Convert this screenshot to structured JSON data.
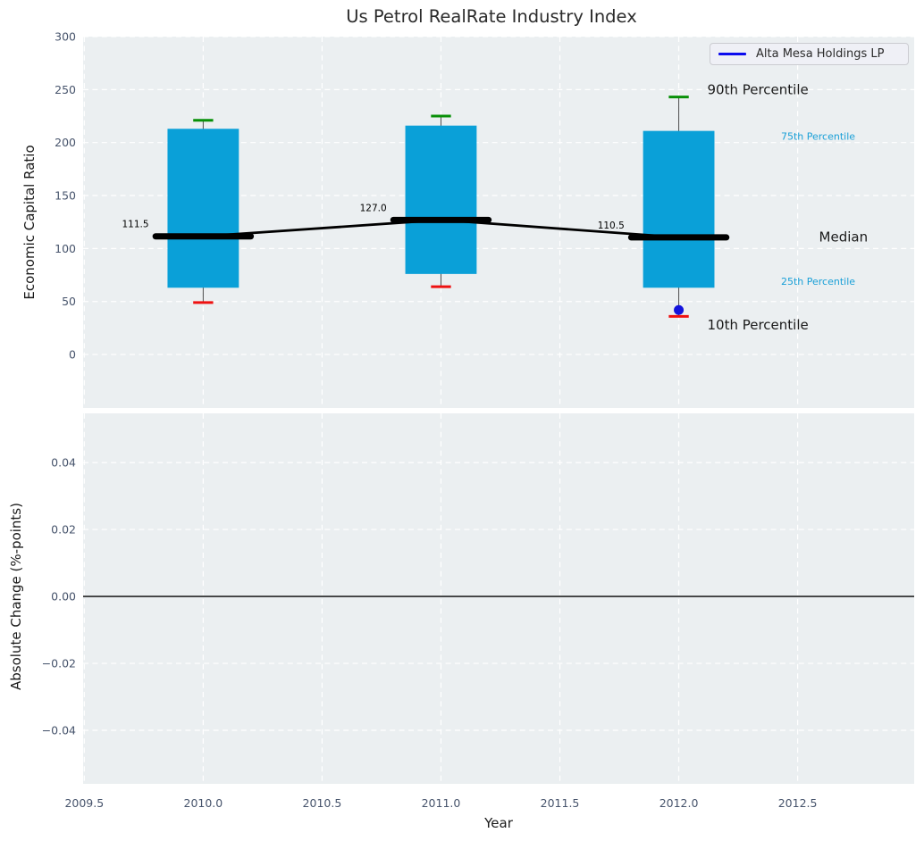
{
  "title": "Us Petrol RealRate Industry Index",
  "legend": {
    "label": "Alta Mesa Holdings LP",
    "line_color": "#0b0bee"
  },
  "colors": {
    "figure_bg": "#ffffff",
    "plot_bg": "#ebeff1",
    "grid": "#ffffff",
    "tick_label": "#47546c",
    "box_fill": "#0aa0d8",
    "whisker": "#4d4d4d",
    "cap_top": "#089008",
    "cap_bottom": "#ee1111",
    "median_line": "#000000",
    "company_point": "#1313dd",
    "zero_line": "#000000",
    "annotation_black": "#1a1a1a",
    "annotation_blue": "#189fd7"
  },
  "chart_data": [
    {
      "type": "boxplot",
      "ylabel": "Economic Capital Ratio",
      "xlim": [
        2009.495,
        2012.99
      ],
      "ylim": [
        -50.5,
        300
      ],
      "xticks": {
        "values": [
          2009.5,
          2010.0,
          2010.5,
          2011.0,
          2011.5,
          2012.0,
          2012.5
        ],
        "labels": [
          "2009.5",
          "2010.0",
          "2010.5",
          "2011.0",
          "2011.5",
          "2012.0",
          "2012.5"
        ]
      },
      "yticks": {
        "values": [
          0,
          50,
          100,
          150,
          200,
          250,
          300
        ],
        "labels": [
          "0",
          "50",
          "100",
          "150",
          "200",
          "250",
          "300"
        ]
      },
      "show_xtick_labels": false,
      "grid": true,
      "box_width": 0.3,
      "cap_width": 0.084,
      "median_seg_width": 0.4,
      "boxes": [
        {
          "x": 2010,
          "p10": 49,
          "p25": 63,
          "median": 111.5,
          "p75": 213,
          "p90": 221,
          "median_label": "111.5"
        },
        {
          "x": 2011,
          "p10": 64,
          "p25": 76,
          "median": 127.0,
          "p75": 216,
          "p90": 225,
          "median_label": "127.0"
        },
        {
          "x": 2012,
          "p10": 36,
          "p25": 63,
          "median": 110.5,
          "p75": 211,
          "p90": 243,
          "median_label": "110.5"
        }
      ],
      "company_point": {
        "series": "Alta Mesa Holdings LP",
        "x": 2012,
        "y": 42
      },
      "annotations": [
        {
          "text": "90th Percentile",
          "x": 2012.12,
          "y": 250,
          "size": 15,
          "color": "#1a1a1a",
          "anchor": "start"
        },
        {
          "text": "75th Percentile",
          "x": 2012.43,
          "y": 206,
          "size": 11,
          "color": "#189fd7",
          "anchor": "start"
        },
        {
          "text": "Median",
          "x": 2012.59,
          "y": 111,
          "size": 15,
          "color": "#1a1a1a",
          "anchor": "start"
        },
        {
          "text": "25th Percentile",
          "x": 2012.43,
          "y": 69,
          "size": 11,
          "color": "#189fd7",
          "anchor": "start"
        },
        {
          "text": "10th Percentile",
          "x": 2012.12,
          "y": 28,
          "size": 15,
          "color": "#1a1a1a",
          "anchor": "start"
        }
      ]
    },
    {
      "type": "line",
      "ylabel": "Absolute Change (%-points)",
      "xlabel": "Year",
      "xlim": [
        2009.495,
        2012.99
      ],
      "ylim": [
        -0.056,
        0.0547
      ],
      "xticks": {
        "values": [
          2009.5,
          2010.0,
          2010.5,
          2011.0,
          2011.5,
          2012.0,
          2012.5
        ],
        "labels": [
          "2009.5",
          "2010.0",
          "2010.5",
          "2011.0",
          "2011.5",
          "2012.0",
          "2012.5"
        ]
      },
      "yticks": {
        "values": [
          0.04,
          0.02,
          0,
          -0.02,
          -0.04
        ],
        "labels": [
          "0.04",
          "0.02",
          "0.00",
          "−0.02",
          "−0.04"
        ]
      },
      "show_xtick_labels": true,
      "grid": true,
      "zero_line": 0
    }
  ]
}
